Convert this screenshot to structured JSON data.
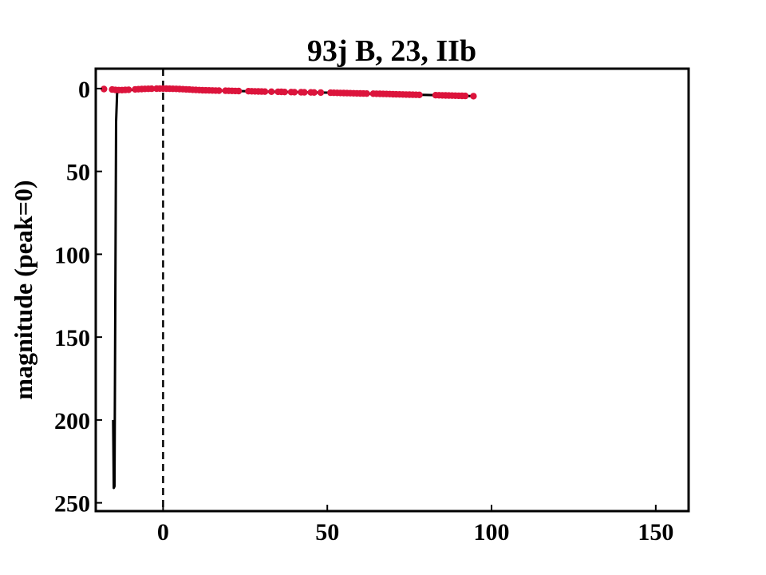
{
  "chart_data": {
    "type": "scatter",
    "title": "93j B, 23, IIb",
    "xlabel": "",
    "ylabel": "magnitude (peak=0)",
    "xlim": [
      -20.5,
      160
    ],
    "ylim": [
      255,
      -12
    ],
    "y_inverted": true,
    "xticks": [
      0,
      50,
      100,
      150
    ],
    "yticks": [
      0,
      50,
      100,
      150,
      200,
      250
    ],
    "grid": false,
    "peak_marker": {
      "x": 0,
      "style": "dashed",
      "color": "#000000"
    },
    "series": [
      {
        "kind": "points",
        "color": "#dc143c",
        "points": [
          [
            -18,
            0.3
          ],
          [
            -15.5,
            0.6
          ],
          [
            -14.5,
            0.8
          ],
          [
            -13.5,
            0.9
          ],
          [
            -12.5,
            0.9
          ],
          [
            -11.5,
            0.8
          ],
          [
            -10.5,
            0.7
          ],
          [
            -8.5,
            0.5
          ],
          [
            -7.5,
            0.4
          ],
          [
            -6.5,
            0.3
          ],
          [
            -5.5,
            0.2
          ],
          [
            -4.5,
            0.15
          ],
          [
            -3.5,
            0.1
          ],
          [
            -2,
            0.05
          ],
          [
            -1,
            0.0
          ],
          [
            0,
            0.0
          ],
          [
            1,
            0.05
          ],
          [
            2,
            0.1
          ],
          [
            3,
            0.15
          ],
          [
            4,
            0.2
          ],
          [
            5,
            0.3
          ],
          [
            6,
            0.4
          ],
          [
            7,
            0.5
          ],
          [
            8,
            0.6
          ],
          [
            9,
            0.7
          ],
          [
            10,
            0.8
          ],
          [
            11,
            0.9
          ],
          [
            12,
            1.0
          ],
          [
            13,
            1.05
          ],
          [
            14,
            1.1
          ],
          [
            15,
            1.15
          ],
          [
            16,
            1.2
          ],
          [
            17,
            1.25
          ],
          [
            19,
            1.3
          ],
          [
            20,
            1.35
          ],
          [
            21,
            1.4
          ],
          [
            22,
            1.45
          ],
          [
            23,
            1.5
          ],
          [
            26,
            1.6
          ],
          [
            27,
            1.65
          ],
          [
            28,
            1.7
          ],
          [
            29,
            1.75
          ],
          [
            30,
            1.8
          ],
          [
            31,
            1.85
          ],
          [
            33,
            1.9
          ],
          [
            35,
            1.95
          ],
          [
            36,
            2.0
          ],
          [
            37,
            2.05
          ],
          [
            39,
            2.1
          ],
          [
            40,
            2.15
          ],
          [
            42,
            2.2
          ],
          [
            43,
            2.25
          ],
          [
            45,
            2.3
          ],
          [
            46,
            2.35
          ],
          [
            48,
            2.4
          ],
          [
            51,
            2.5
          ],
          [
            52,
            2.55
          ],
          [
            53,
            2.6
          ],
          [
            54,
            2.65
          ],
          [
            55,
            2.7
          ],
          [
            56,
            2.75
          ],
          [
            57,
            2.8
          ],
          [
            58,
            2.85
          ],
          [
            59,
            2.9
          ],
          [
            60,
            2.95
          ],
          [
            61,
            3.0
          ],
          [
            62,
            3.05
          ],
          [
            64,
            3.1
          ],
          [
            65,
            3.15
          ],
          [
            66,
            3.2
          ],
          [
            67,
            3.25
          ],
          [
            68,
            3.3
          ],
          [
            69,
            3.35
          ],
          [
            70,
            3.4
          ],
          [
            71,
            3.45
          ],
          [
            72,
            3.5
          ],
          [
            73,
            3.55
          ],
          [
            74,
            3.6
          ],
          [
            75,
            3.65
          ],
          [
            76,
            3.7
          ],
          [
            77,
            3.75
          ],
          [
            78,
            3.8
          ],
          [
            83,
            4.0
          ],
          [
            84,
            4.05
          ],
          [
            85,
            4.1
          ],
          [
            86,
            4.15
          ],
          [
            87,
            4.2
          ],
          [
            88,
            4.25
          ],
          [
            89,
            4.3
          ],
          [
            90,
            4.35
          ],
          [
            91,
            4.4
          ],
          [
            92,
            4.45
          ],
          [
            94.5,
            4.6
          ]
        ]
      },
      {
        "kind": "line",
        "color": "#000000",
        "points": [
          [
            -15.2,
            200
          ],
          [
            -15.0,
            241
          ],
          [
            -14.8,
            240
          ],
          [
            -14.3,
            20
          ],
          [
            -14.0,
            2.5
          ],
          [
            -13,
            1.5
          ],
          [
            -10,
            0.8
          ],
          [
            -5,
            0.3
          ],
          [
            0,
            0.0
          ],
          [
            5,
            0.3
          ],
          [
            10,
            0.8
          ],
          [
            20,
            1.4
          ],
          [
            30,
            1.8
          ],
          [
            40,
            2.15
          ],
          [
            50,
            2.45
          ],
          [
            60,
            2.95
          ],
          [
            70,
            3.4
          ],
          [
            80,
            3.85
          ],
          [
            90,
            4.35
          ],
          [
            94.5,
            4.6
          ]
        ]
      }
    ]
  }
}
